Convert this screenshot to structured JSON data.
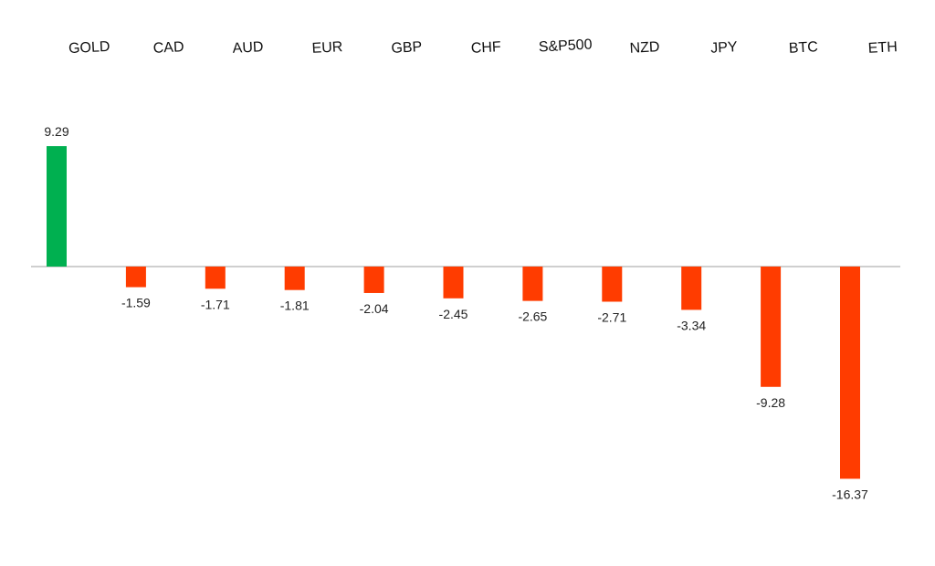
{
  "chart_data": {
    "type": "bar",
    "title": "",
    "xlabel": "",
    "ylabel": "",
    "categories": [
      "GOLD",
      "CAD",
      "AUD",
      "EUR",
      "GBP",
      "CHF",
      "S&P500",
      "NZD",
      "JPY",
      "BTC",
      "ETH"
    ],
    "values": [
      9.29,
      -1.59,
      -1.71,
      -1.81,
      -2.04,
      -2.45,
      -2.65,
      -2.71,
      -3.34,
      -9.28,
      -16.37
    ],
    "value_labels": [
      "9.29",
      "-1.59",
      "-1.71",
      "-1.81",
      "-2.04",
      "-2.45",
      "-2.65",
      "-2.71",
      "-3.34",
      "-9.28",
      "-16.37"
    ],
    "ylim": [
      -16.37,
      9.29
    ],
    "grid": false,
    "legend": "none",
    "category_label_position": "top",
    "colors": {
      "positive": "#00b050",
      "negative": "#ff3c00",
      "baseline": "#bfbfbf"
    }
  }
}
